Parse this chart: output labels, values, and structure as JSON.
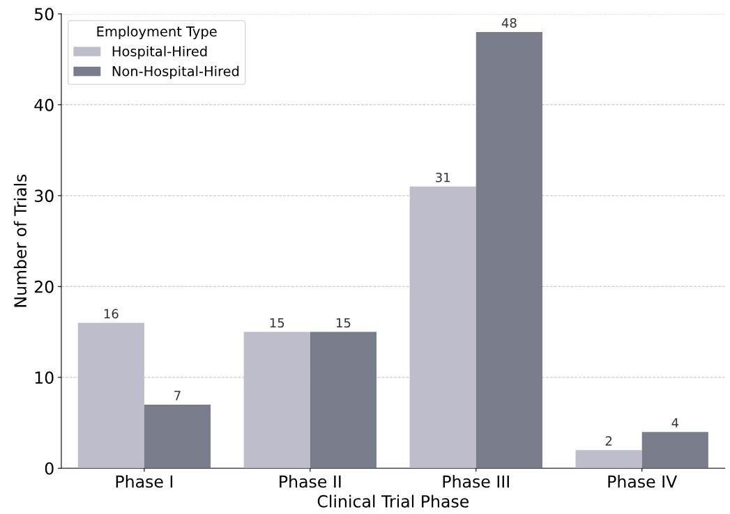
{
  "chart_data": {
    "type": "bar",
    "xlabel": "Clinical Trial Phase",
    "ylabel": "Number of Trials",
    "legend_title": "Employment Type",
    "categories": [
      "Phase I",
      "Phase II",
      "Phase III",
      "Phase IV"
    ],
    "series": [
      {
        "name": "Hospital-Hired",
        "color": "#bebdcc",
        "values": [
          16,
          15,
          31,
          2
        ]
      },
      {
        "name": "Non-Hospital-Hired",
        "color": "#787c8b",
        "values": [
          7,
          15,
          48,
          4
        ]
      }
    ],
    "ylim": [
      0,
      50
    ],
    "yticks": [
      0,
      10,
      20,
      30,
      40,
      50
    ],
    "grid": "y",
    "legend": "top left",
    "data_labels": true
  }
}
